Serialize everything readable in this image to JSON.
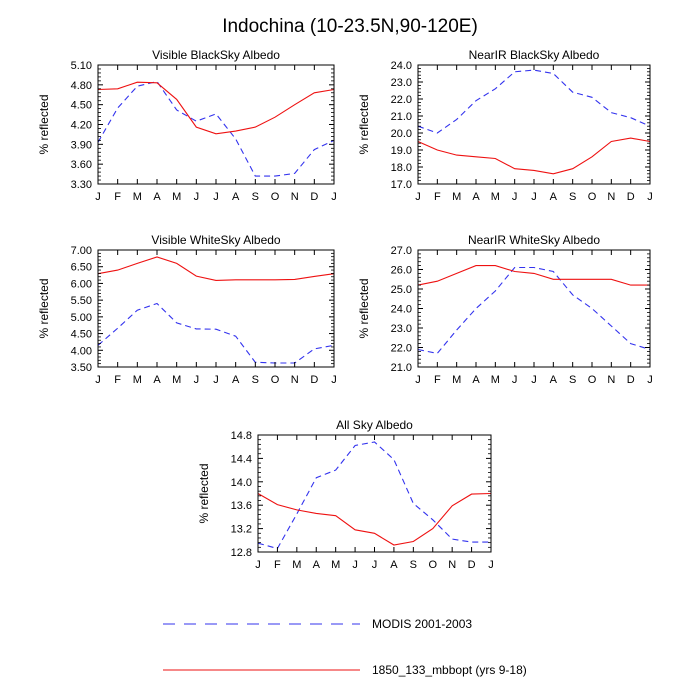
{
  "figure": {
    "title": "Indochina (10-23.5N,90-120E)"
  },
  "legend": [
    {
      "name": "MODIS 2001-2003",
      "color": "#3333ee",
      "dash": "dashed"
    },
    {
      "name": "1850_133_mbbopt (yrs 9-18)",
      "color": "#ee1111",
      "dash": "solid"
    }
  ],
  "chart_data": [
    {
      "type": "line",
      "title": "Visible BlackSky Albedo",
      "ylabel": "% reflected",
      "categories": [
        "J",
        "F",
        "M",
        "A",
        "M",
        "J",
        "J",
        "A",
        "S",
        "O",
        "N",
        "D",
        "J"
      ],
      "ylim": [
        3.3,
        5.1
      ],
      "yticks": [
        "3.30",
        "3.60",
        "3.90",
        "4.20",
        "4.50",
        "4.80",
        "5.10"
      ],
      "series": [
        {
          "name": "MODIS 2001-2003",
          "values": [
            3.93,
            4.45,
            4.78,
            4.85,
            4.42,
            4.25,
            4.36,
            3.98,
            3.42,
            3.42,
            3.46,
            3.82,
            3.96
          ]
        },
        {
          "name": "1850_133_mbbopt (yrs 9-18)",
          "values": [
            4.73,
            4.74,
            4.84,
            4.83,
            4.58,
            4.16,
            4.06,
            4.1,
            4.16,
            4.31,
            4.5,
            4.68,
            4.73
          ]
        }
      ]
    },
    {
      "type": "line",
      "title": "NearIR BlackSky Albedo",
      "ylabel": "% reflected",
      "categories": [
        "J",
        "F",
        "M",
        "A",
        "M",
        "J",
        "J",
        "A",
        "S",
        "O",
        "N",
        "D",
        "J"
      ],
      "ylim": [
        17.0,
        24.0
      ],
      "yticks": [
        "17.0",
        "18.0",
        "19.0",
        "20.0",
        "21.0",
        "22.0",
        "23.0",
        "24.0"
      ],
      "series": [
        {
          "name": "MODIS 2001-2003",
          "values": [
            20.4,
            20.0,
            20.8,
            21.9,
            22.6,
            23.6,
            23.7,
            23.5,
            22.4,
            22.1,
            21.2,
            20.9,
            20.4
          ]
        },
        {
          "name": "1850_133_mbbopt (yrs 9-18)",
          "values": [
            19.5,
            19.0,
            18.7,
            18.6,
            18.5,
            17.9,
            17.8,
            17.6,
            17.9,
            18.6,
            19.5,
            19.7,
            19.5
          ]
        }
      ]
    },
    {
      "type": "line",
      "title": "Visible WhiteSky Albedo",
      "ylabel": "% reflected",
      "categories": [
        "J",
        "F",
        "M",
        "A",
        "M",
        "J",
        "J",
        "A",
        "S",
        "O",
        "N",
        "D",
        "J"
      ],
      "ylim": [
        3.5,
        7.0
      ],
      "yticks": [
        "3.50",
        "4.00",
        "4.50",
        "5.00",
        "5.50",
        "6.00",
        "6.50",
        "7.00"
      ],
      "series": [
        {
          "name": "MODIS 2001-2003",
          "values": [
            4.15,
            4.66,
            5.2,
            5.4,
            4.82,
            4.64,
            4.63,
            4.42,
            3.64,
            3.62,
            3.62,
            4.04,
            4.15
          ]
        },
        {
          "name": "1850_133_mbbopt (yrs 9-18)",
          "values": [
            6.29,
            6.4,
            6.6,
            6.79,
            6.6,
            6.22,
            6.09,
            6.11,
            6.11,
            6.11,
            6.12,
            6.21,
            6.29
          ]
        }
      ]
    },
    {
      "type": "line",
      "title": "NearIR WhiteSky Albedo",
      "ylabel": "% reflected",
      "categories": [
        "J",
        "F",
        "M",
        "A",
        "M",
        "J",
        "J",
        "A",
        "S",
        "O",
        "N",
        "D",
        "J"
      ],
      "ylim": [
        21.0,
        27.0
      ],
      "yticks": [
        "21.0",
        "22.0",
        "23.0",
        "24.0",
        "25.0",
        "26.0",
        "27.0"
      ],
      "series": [
        {
          "name": "MODIS 2001-2003",
          "values": [
            21.9,
            21.7,
            22.9,
            24.0,
            24.9,
            26.1,
            26.1,
            25.9,
            24.7,
            24.0,
            23.1,
            22.2,
            21.9
          ]
        },
        {
          "name": "1850_133_mbbopt (yrs 9-18)",
          "values": [
            25.2,
            25.4,
            25.8,
            26.2,
            26.2,
            25.9,
            25.8,
            25.5,
            25.5,
            25.5,
            25.5,
            25.2,
            25.2
          ]
        }
      ]
    },
    {
      "type": "line",
      "title": "All Sky Albedo",
      "ylabel": "% reflected",
      "categories": [
        "J",
        "F",
        "M",
        "A",
        "M",
        "J",
        "J",
        "A",
        "S",
        "O",
        "N",
        "D",
        "J"
      ],
      "ylim": [
        12.8,
        14.8
      ],
      "yticks": [
        "12.8",
        "13.2",
        "13.6",
        "14.0",
        "14.4",
        "14.8"
      ],
      "series": [
        {
          "name": "MODIS 2001-2003",
          "values": [
            12.95,
            12.86,
            13.45,
            14.07,
            14.2,
            14.62,
            14.68,
            14.38,
            13.63,
            13.35,
            13.02,
            12.97,
            12.97
          ]
        },
        {
          "name": "1850_133_mbbopt (yrs 9-18)",
          "values": [
            13.8,
            13.61,
            13.52,
            13.46,
            13.42,
            13.18,
            13.12,
            12.92,
            12.98,
            13.2,
            13.59,
            13.79,
            13.8
          ]
        }
      ]
    }
  ]
}
